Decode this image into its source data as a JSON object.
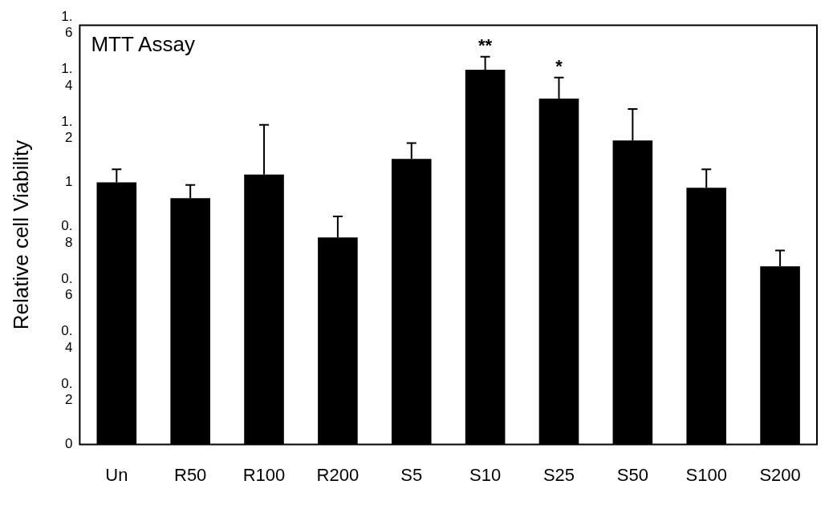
{
  "chart_data": {
    "type": "bar",
    "title": "MTT Assay",
    "ylabel": "Relative cell Viability",
    "categories": [
      "Un",
      "R50",
      "R100",
      "R200",
      "S5",
      "S10",
      "S25",
      "S50",
      "S100",
      "S200"
    ],
    "values": [
      1.0,
      0.94,
      1.03,
      0.79,
      1.09,
      1.43,
      1.32,
      1.16,
      0.98,
      0.68
    ],
    "errors": [
      [
        1.0,
        1.05
      ],
      [
        0.94,
        0.99
      ],
      [
        1.03,
        1.22
      ],
      [
        0.79,
        0.87
      ],
      [
        1.09,
        1.15
      ],
      [
        1.43,
        1.48
      ],
      [
        1.32,
        1.4
      ],
      [
        1.16,
        1.28
      ],
      [
        0.98,
        1.05
      ],
      [
        0.68,
        0.74
      ]
    ],
    "color": "#000000",
    "ylim": [
      0,
      1.6
    ],
    "yticks": [
      0,
      0.2,
      0.4,
      0.6,
      0.8,
      1,
      1.2,
      1.4,
      1.6
    ],
    "annotations": [
      {
        "text": "**",
        "x": "S10",
        "y": 1.48
      },
      {
        "text": "*",
        "x": "S25",
        "y": 1.4
      }
    ],
    "grid": false,
    "legend": false
  }
}
